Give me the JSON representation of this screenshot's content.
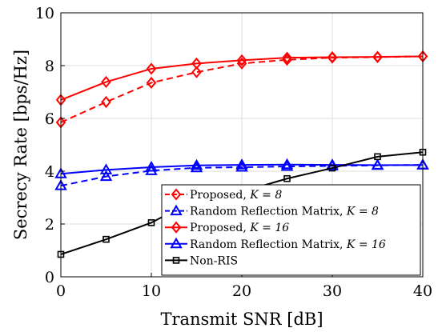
{
  "chart_data": {
    "type": "line",
    "xlabel": "Transmit SNR [dB]",
    "ylabel": "Secrecy Rate [bps/Hz]",
    "xlim": [
      0,
      40
    ],
    "ylim": [
      0,
      10
    ],
    "x_ticks": [
      "0",
      "10",
      "20",
      "30",
      "40"
    ],
    "y_ticks": [
      "0",
      "2",
      "4",
      "6",
      "8",
      "10"
    ],
    "grid": true,
    "legend_position": "bottom-right",
    "x": [
      0,
      5,
      10,
      15,
      20,
      25,
      30,
      35,
      40
    ],
    "series": [
      {
        "name": "Proposed, K = 8",
        "legend_prefix": "Proposed, ",
        "legend_math": "K = 8",
        "color": "#ff0000",
        "line": "dashed",
        "marker": "diamond",
        "values": [
          5.85,
          6.62,
          7.35,
          7.75,
          8.08,
          8.22,
          8.3,
          8.32,
          8.35
        ]
      },
      {
        "name": "Random Reflection Matrix, K = 8",
        "legend_prefix": "Random Reflection Matrix, ",
        "legend_math": "K = 8",
        "color": "#0000ff",
        "line": "dashed",
        "marker": "triangle",
        "values": [
          3.45,
          3.8,
          4.02,
          4.13,
          4.15,
          4.18,
          4.2,
          4.22,
          4.24
        ]
      },
      {
        "name": "Proposed, K = 16",
        "legend_prefix": "Proposed, ",
        "legend_math": "K = 16",
        "color": "#ff0000",
        "line": "solid",
        "marker": "diamond",
        "values": [
          6.7,
          7.38,
          7.88,
          8.08,
          8.2,
          8.3,
          8.32,
          8.33,
          8.35
        ]
      },
      {
        "name": "Random Reflection Matrix, K = 16",
        "legend_prefix": "Random Reflection Matrix, ",
        "legend_math": "K = 16",
        "color": "#0000ff",
        "line": "solid",
        "marker": "triangle",
        "values": [
          3.9,
          4.05,
          4.15,
          4.22,
          4.24,
          4.25,
          4.24,
          4.23,
          4.23
        ]
      },
      {
        "name": "Non-RIS",
        "legend_prefix": "Non-RIS",
        "legend_math": "",
        "color": "#000000",
        "line": "solid",
        "marker": "square",
        "values": [
          0.85,
          1.42,
          2.05,
          2.95,
          3.22,
          3.72,
          4.12,
          4.55,
          4.72
        ]
      }
    ]
  }
}
